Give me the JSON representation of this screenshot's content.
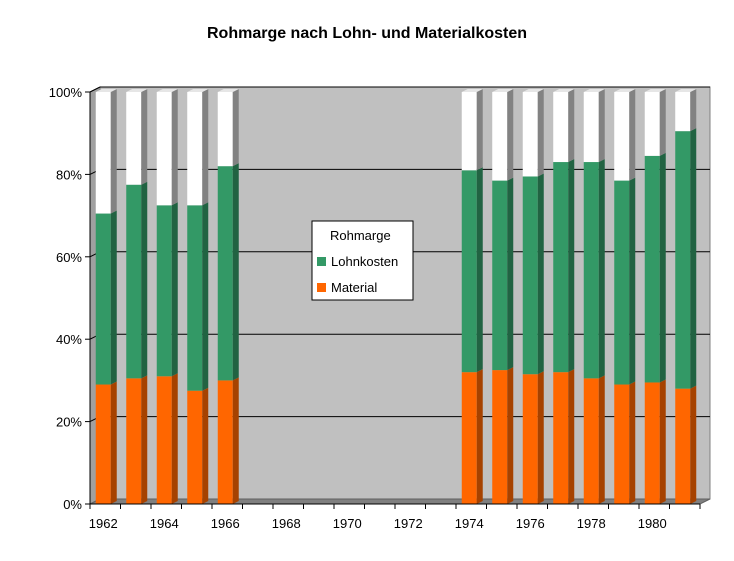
{
  "chart_data": {
    "type": "bar",
    "stacked": true,
    "percent_stacked": true,
    "title": "Rohmarge nach Lohn- und Materialkosten",
    "xlabel": "",
    "ylabel": "",
    "ylim": [
      0,
      100
    ],
    "y_ticks": [
      "0%",
      "20%",
      "40%",
      "60%",
      "80%",
      "100%"
    ],
    "x_ticks": [
      "1962",
      "1964",
      "1966",
      "1968",
      "1970",
      "1972",
      "1974",
      "1976",
      "1978",
      "1980"
    ],
    "categories": [
      "1962",
      "1963",
      "1964",
      "1965",
      "1966",
      "1967",
      "1968",
      "1969",
      "1970",
      "1971",
      "1972",
      "1973",
      "1974",
      "1975",
      "1976",
      "1977",
      "1978",
      "1979",
      "1980",
      "1981"
    ],
    "series": [
      {
        "name": "Material",
        "color": "#ff6600",
        "values": [
          29,
          30.5,
          31,
          27.5,
          30,
          null,
          null,
          null,
          null,
          null,
          null,
          null,
          32,
          32.5,
          31.5,
          32,
          30.5,
          29,
          29.5,
          28
        ]
      },
      {
        "name": "Lohnkosten",
        "color": "#339966",
        "values": [
          41.5,
          47,
          41.5,
          45,
          52,
          null,
          null,
          null,
          null,
          null,
          null,
          null,
          49,
          46,
          48,
          51,
          52.5,
          49.5,
          55,
          62.5
        ]
      },
      {
        "name": "Rohmarge",
        "color": "#ffffff",
        "values": [
          29.5,
          22.5,
          27.5,
          27.5,
          18,
          null,
          null,
          null,
          null,
          null,
          null,
          null,
          19,
          21.5,
          20.5,
          17,
          17,
          21.5,
          15.5,
          9.5
        ]
      }
    ],
    "legend": {
      "position": "center",
      "entries": [
        "Rohmarge",
        "Lohnkosten",
        "Material"
      ]
    },
    "grid": true,
    "background": "#c0c0c0"
  }
}
